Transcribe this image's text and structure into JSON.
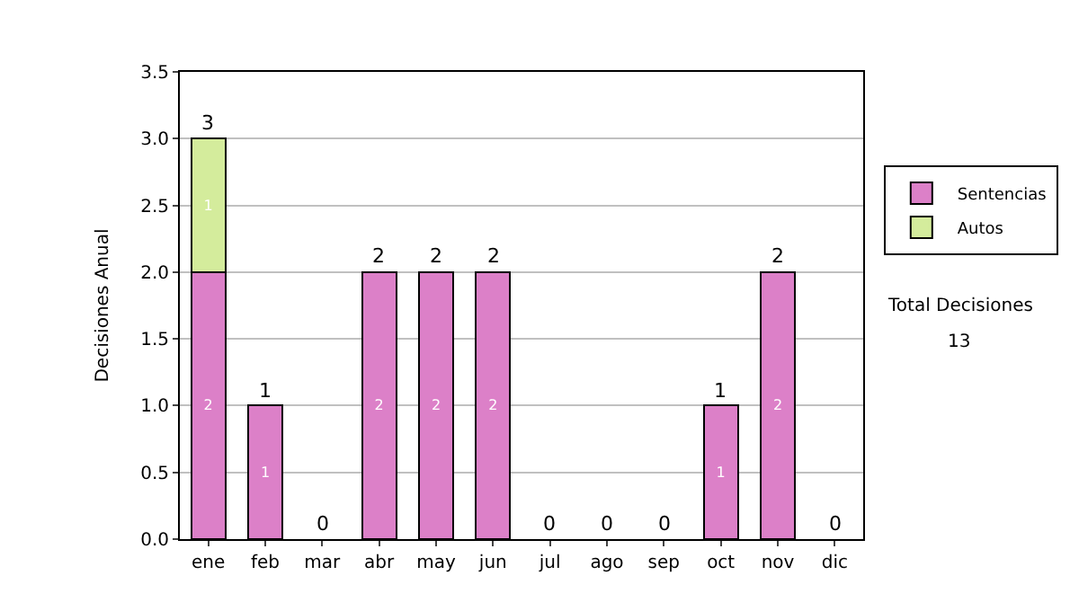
{
  "chart_data": {
    "type": "bar",
    "stacked": true,
    "ylabel": "Decisiones Anual",
    "categories": [
      "ene",
      "feb",
      "mar",
      "abr",
      "may",
      "jun",
      "jul",
      "ago",
      "sep",
      "oct",
      "nov",
      "dic"
    ],
    "series": [
      {
        "name": "Sentencias",
        "color": "#dc80c8",
        "values": [
          2,
          1,
          0,
          2,
          2,
          2,
          0,
          0,
          0,
          1,
          2,
          0
        ],
        "value_labels": [
          "2",
          "1",
          null,
          "2",
          "2",
          "2",
          null,
          null,
          null,
          "1",
          "2",
          null
        ]
      },
      {
        "name": "Autos",
        "color": "#d4ec9c",
        "values": [
          1,
          0,
          0,
          0,
          0,
          0,
          0,
          0,
          0,
          0,
          0,
          0
        ],
        "value_labels": [
          "1",
          null,
          null,
          null,
          null,
          null,
          null,
          null,
          null,
          null,
          null,
          null
        ]
      }
    ],
    "totals": [
      "3",
      "1",
      "0",
      "2",
      "2",
      "2",
      "0",
      "0",
      "0",
      "1",
      "2",
      "0"
    ],
    "ylim": [
      0,
      3.5
    ],
    "yticks": [
      {
        "value": 0,
        "label": "0.0"
      },
      {
        "value": 0.5,
        "label": "0.5"
      },
      {
        "value": 1,
        "label": "1.0"
      },
      {
        "value": 1.5,
        "label": "1.5"
      },
      {
        "value": 2,
        "label": "2.0"
      },
      {
        "value": 2.5,
        "label": "2.5"
      },
      {
        "value": 3,
        "label": "3.0"
      },
      {
        "value": 3.5,
        "label": "3.5"
      }
    ],
    "grid": "y",
    "legend": "right",
    "annotations": [
      "Total Decisiones",
      "13"
    ]
  }
}
